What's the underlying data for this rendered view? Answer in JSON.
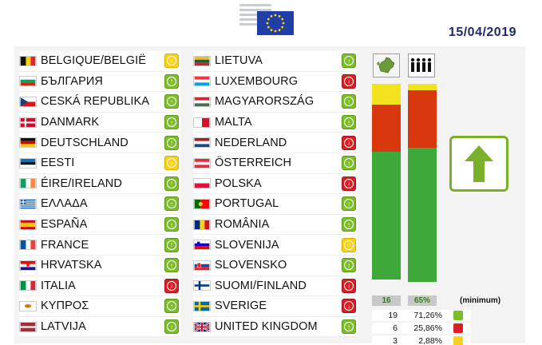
{
  "header": {
    "date": "15/04/2019"
  },
  "vote_colors": {
    "yes": "#7dbd2a",
    "no": "#d81f26",
    "abstain": "#f7d11a"
  },
  "countries_left": [
    {
      "name": "BELGIQUE/BELGIË",
      "flag": "belgium-flag",
      "vote": "abstain"
    },
    {
      "name": "БЪЛГАРИЯ",
      "flag": "bulgaria-flag",
      "vote": "yes"
    },
    {
      "name": "CESKÁ REPUBLIKA",
      "flag": "czech-flag",
      "vote": "yes"
    },
    {
      "name": "DANMARK",
      "flag": "denmark-flag",
      "vote": "yes"
    },
    {
      "name": "DEUTSCHLAND",
      "flag": "germany-flag",
      "vote": "yes"
    },
    {
      "name": "EESTI",
      "flag": "estonia-flag",
      "vote": "abstain"
    },
    {
      "name": "ÉIRE/IRELAND",
      "flag": "ireland-flag",
      "vote": "yes"
    },
    {
      "name": "ΕΛΛΑΔΑ",
      "flag": "greece-flag",
      "vote": "yes"
    },
    {
      "name": "ESPAÑA",
      "flag": "spain-flag",
      "vote": "yes"
    },
    {
      "name": "FRANCE",
      "flag": "france-flag",
      "vote": "yes"
    },
    {
      "name": "HRVATSKA",
      "flag": "croatia-flag",
      "vote": "yes"
    },
    {
      "name": "ITALIA",
      "flag": "italy-flag",
      "vote": "no"
    },
    {
      "name": "ΚΥΠΡΟΣ",
      "flag": "cyprus-flag",
      "vote": "yes"
    },
    {
      "name": "LATVIJA",
      "flag": "latvia-flag",
      "vote": "yes"
    }
  ],
  "countries_right": [
    {
      "name": "LIETUVA",
      "flag": "lithuania-flag",
      "vote": "yes"
    },
    {
      "name": "LUXEMBOURG",
      "flag": "luxembourg-flag",
      "vote": "no"
    },
    {
      "name": "MAGYARORSZÁG",
      "flag": "hungary-flag",
      "vote": "yes"
    },
    {
      "name": "MALTA",
      "flag": "malta-flag",
      "vote": "yes"
    },
    {
      "name": "NEDERLAND",
      "flag": "netherlands-flag",
      "vote": "no"
    },
    {
      "name": "ÖSTERREICH",
      "flag": "austria-flag",
      "vote": "yes"
    },
    {
      "name": "POLSKA",
      "flag": "poland-flag",
      "vote": "no"
    },
    {
      "name": "PORTUGAL",
      "flag": "portugal-flag",
      "vote": "yes"
    },
    {
      "name": "ROMÂNIA",
      "flag": "romania-flag",
      "vote": "yes"
    },
    {
      "name": "SLOVENIJA",
      "flag": "slovenia-flag",
      "vote": "abstain"
    },
    {
      "name": "SLOVENSKO",
      "flag": "slovakia-flag",
      "vote": "yes"
    },
    {
      "name": "SUOMI/FINLAND",
      "flag": "finland-flag",
      "vote": "no"
    },
    {
      "name": "SVERIGE",
      "flag": "sweden-flag",
      "vote": "no"
    },
    {
      "name": "UNITED KINGDOM",
      "flag": "uk-flag",
      "vote": "yes"
    }
  ],
  "bars": {
    "member_states": {
      "label": "16",
      "yes": 0.62,
      "no": 0.23,
      "abstain": 0.1
    },
    "population": {
      "label": "65%",
      "yes": 0.65,
      "no": 0.28,
      "abstain": 0.03
    }
  },
  "minimum_label": "(minimum)",
  "stats": [
    {
      "count": "19",
      "pct": "71,26%",
      "vote": "yes"
    },
    {
      "count": "6",
      "pct": "25,86%",
      "vote": "no"
    },
    {
      "count": "3",
      "pct": "2,88%",
      "vote": "abstain"
    }
  ]
}
